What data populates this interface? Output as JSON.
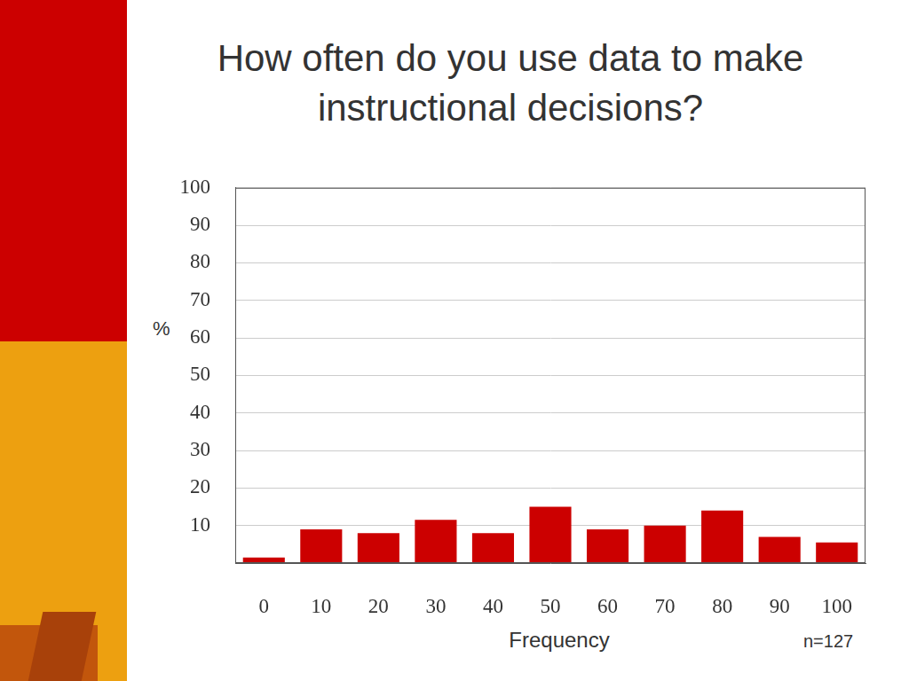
{
  "chart_data": {
    "type": "bar",
    "title": "How often do you use data to make instructional decisions?",
    "x_label": "Frequency",
    "y_label": "%",
    "annotation": "n=127",
    "categories": [
      "0",
      "10",
      "20",
      "30",
      "40",
      "50",
      "60",
      "70",
      "80",
      "90",
      "100"
    ],
    "values": [
      1.5,
      9,
      8,
      11.5,
      8,
      15,
      9,
      10,
      14,
      7,
      5.5
    ],
    "color": "#cc0000",
    "ylim": [
      0,
      100
    ],
    "yticks": [
      10,
      20,
      30,
      40,
      50,
      60,
      70,
      80,
      90,
      100
    ],
    "grid": true
  }
}
